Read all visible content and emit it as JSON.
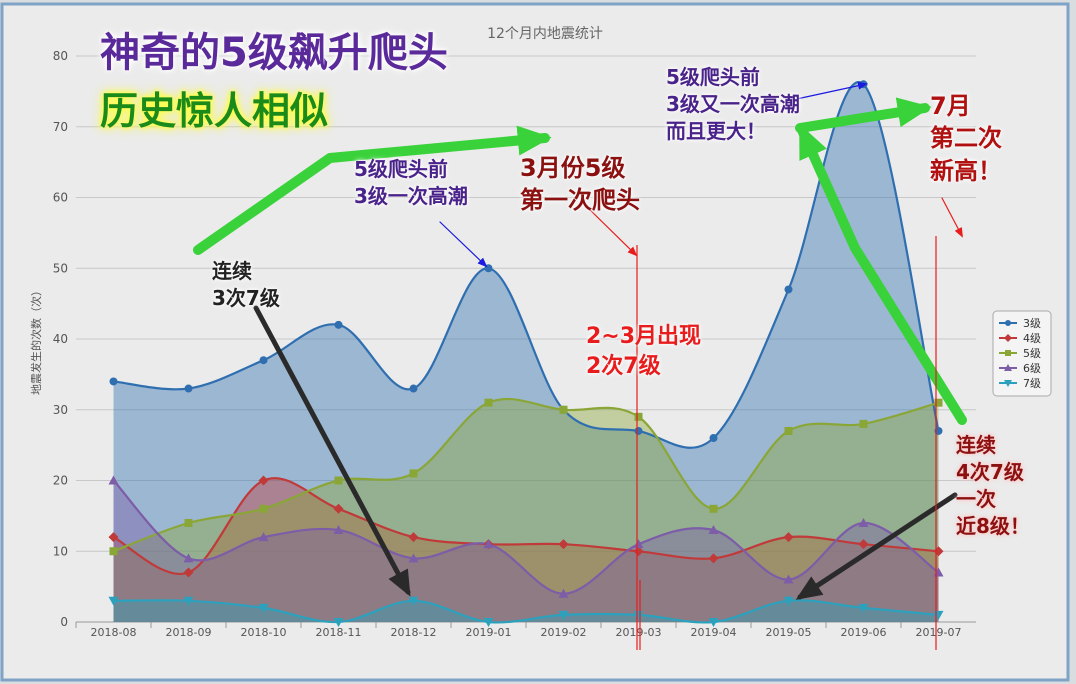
{
  "chart_data": {
    "type": "area",
    "title": "12个月内地震统计",
    "ylabel": "地震发生的次数（次）",
    "ylim": [
      0,
      80
    ],
    "yticks": [
      0,
      10,
      20,
      30,
      40,
      50,
      60,
      70,
      80
    ],
    "grid": true,
    "legend_position": "right",
    "categories": [
      "2018-08",
      "2018-09",
      "2018-10",
      "2018-11",
      "2018-12",
      "2019-01",
      "2019-02",
      "2019-03",
      "2019-04",
      "2019-05",
      "2019-06",
      "2019-07"
    ],
    "series": [
      {
        "name": "3级",
        "values": [
          34,
          33,
          37,
          42,
          33,
          50,
          30,
          27,
          26,
          47,
          76,
          27
        ],
        "color": "#2f6fb0",
        "marker": "circle"
      },
      {
        "name": "4级",
        "values": [
          12,
          7,
          20,
          16,
          12,
          11,
          11,
          10,
          9,
          12,
          11,
          10
        ],
        "color": "#c03a3a",
        "marker": "diamond"
      },
      {
        "name": "5级",
        "values": [
          10,
          14,
          16,
          20,
          21,
          31,
          30,
          29,
          16,
          27,
          28,
          31
        ],
        "color": "#8aa637",
        "marker": "square"
      },
      {
        "name": "6级",
        "values": [
          20,
          9,
          12,
          13,
          9,
          11,
          4,
          11,
          13,
          6,
          14,
          7
        ],
        "color": "#7d5ca8",
        "marker": "triangle"
      },
      {
        "name": "7级",
        "values": [
          3,
          3,
          2,
          0,
          3,
          0,
          1,
          1,
          0,
          3,
          2,
          1
        ],
        "color": "#2ba1bd",
        "marker": "triangle-down"
      }
    ]
  },
  "annotations": {
    "headline_title": "神奇的5级飙升爬头",
    "headline_subtitle": "历史惊人相似",
    "note_3x7": "连续\n3次7级",
    "note_5_before_1": "5级爬头前\n3级一次高潮",
    "note_march": "3月份5级\n第一次爬头",
    "note_feb_mar": "2~3月出现\n2次7级",
    "note_5_before_2": "5级爬头前\n3级又一次高潮\n而且更大！",
    "note_july": "7月\n第二次\n新高！",
    "note_4x7": "连续\n4次7级\n一次\n近8级！"
  }
}
